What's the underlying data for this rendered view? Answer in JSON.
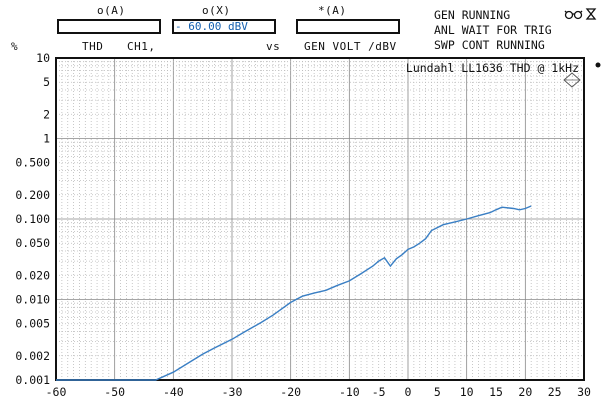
{
  "header": {
    "channel_a_label": "o(A)",
    "channel_x_label": "o(X)",
    "channel_star_label": "*(A)",
    "channel_x_value": "- 60.00 dBV",
    "y_quantity": "THD",
    "y_channel": "CH1,",
    "vs_label": "vs",
    "x_quantity": "GEN VOLT /dBV",
    "y_unit": "%"
  },
  "status": {
    "line1": "GEN RUNNING",
    "line2": "ANL WAIT FOR TRIG",
    "line3": "SWP CONT RUNNING",
    "icons": [
      "glasses-icon",
      "hourglass-icon"
    ]
  },
  "chart_data": {
    "type": "line",
    "title": "Lundahl LL1636 THD @ 1kHz",
    "xlabel": "GEN VOLT /dBV",
    "ylabel": "THD %",
    "y_scale": "log",
    "xlim": [
      -60,
      30
    ],
    "ylim": [
      0.001,
      10
    ],
    "x_ticks": [
      -60,
      -50,
      -40,
      -30,
      -20,
      -10,
      -5,
      0,
      5,
      10,
      15,
      20,
      25,
      30
    ],
    "x_tick_labels": [
      "-60",
      "-50",
      "-40",
      "-30",
      "-20",
      "-10",
      "-5",
      "0",
      "5",
      "10",
      "15",
      "20",
      "25",
      "30"
    ],
    "y_ticks": [
      10,
      5,
      2,
      1,
      0.5,
      0.2,
      0.1,
      0.05,
      0.02,
      0.01,
      0.005,
      0.002,
      0.001
    ],
    "y_tick_labels": [
      "10",
      "5",
      "2",
      "1",
      "0.500",
      "0.200",
      "0.100",
      "0.050",
      "0.020",
      "0.010",
      "0.005",
      "0.002",
      "0.001"
    ],
    "grid": true,
    "series": [
      {
        "color": "#3a7fc4",
        "x": [
          -60,
          -55,
          -50,
          -45,
          -43,
          -40,
          -37,
          -35,
          -33,
          -30,
          -28,
          -25,
          -23,
          -20,
          -18,
          -16,
          -14,
          -12,
          -10,
          -8,
          -6,
          -5,
          -4,
          -3,
          -2,
          -1,
          0,
          1,
          2,
          3,
          4,
          6,
          8,
          10,
          12,
          14,
          15,
          16,
          18,
          19,
          20,
          21
        ],
        "y": [
          0.001,
          0.001,
          0.001,
          0.001,
          0.001,
          0.00125,
          0.0017,
          0.0021,
          0.0025,
          0.0032,
          0.0039,
          0.0052,
          0.0064,
          0.0092,
          0.011,
          0.012,
          0.013,
          0.015,
          0.017,
          0.021,
          0.026,
          0.03,
          0.033,
          0.026,
          0.032,
          0.036,
          0.042,
          0.045,
          0.05,
          0.057,
          0.072,
          0.085,
          0.092,
          0.1,
          0.11,
          0.12,
          0.13,
          0.14,
          0.135,
          0.13,
          0.135,
          0.145
        ]
      }
    ]
  }
}
